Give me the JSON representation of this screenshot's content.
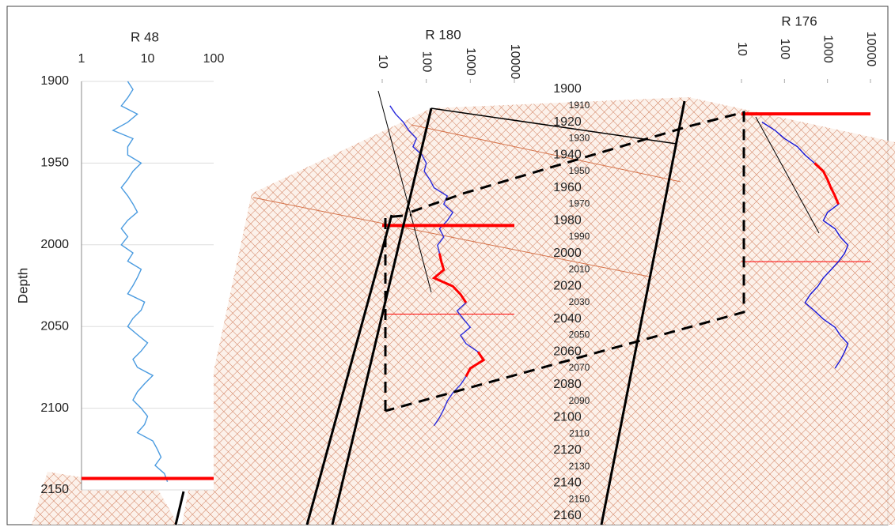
{
  "chart_data": [
    {
      "type": "line",
      "title": "R 48",
      "ylabel": "Depth",
      "xscale": "log",
      "xlim": [
        1,
        100
      ],
      "xticks": [
        1,
        10,
        100
      ],
      "ylim": [
        1900,
        2150
      ],
      "yticks": [
        1900,
        1950,
        2000,
        2050,
        2100,
        2150
      ],
      "grid": true,
      "x": [
        1900,
        1905,
        1910,
        1915,
        1920,
        1925,
        1930,
        1935,
        1940,
        1945,
        1950,
        1955,
        1960,
        1965,
        1970,
        1975,
        1980,
        1985,
        1990,
        1995,
        2000,
        2005,
        2010,
        2015,
        2020,
        2025,
        2030,
        2035,
        2040,
        2045,
        2050,
        2055,
        2060,
        2065,
        2070,
        2075,
        2080,
        2085,
        2090,
        2095,
        2100,
        2105,
        2110,
        2115,
        2120,
        2125,
        2130,
        2135,
        2140,
        2145
      ],
      "series": [
        {
          "color": "#4a9be0",
          "values": [
            5,
            6,
            5,
            4,
            7,
            5,
            3,
            6,
            5,
            5,
            8,
            6,
            5,
            4,
            5,
            6,
            7,
            5,
            4,
            5,
            4,
            6,
            5,
            8,
            7,
            6,
            5,
            9,
            8,
            6,
            5,
            7,
            10,
            8,
            6,
            7,
            12,
            9,
            7,
            6,
            8,
            10,
            9,
            7,
            12,
            14,
            16,
            13,
            18,
            20
          ]
        }
      ],
      "highlight_depths": [
        2143
      ],
      "highlight_color": "#ff0000"
    },
    {
      "type": "line",
      "title": "R 180",
      "xscale": "log",
      "xlim": [
        10,
        10000
      ],
      "xticks": [
        10,
        100,
        1000,
        10000
      ],
      "x": [
        1910,
        1915,
        1920,
        1925,
        1930,
        1935,
        1940,
        1945,
        1950,
        1955,
        1960,
        1965,
        1970,
        1975,
        1980,
        1985,
        1990,
        1995,
        2000,
        2005,
        2010,
        2015,
        2020,
        2025,
        2030,
        2035,
        2040,
        2045,
        2050,
        2055,
        2060,
        2065,
        2070,
        2075,
        2080,
        2085,
        2090,
        2095,
        2100,
        2105
      ],
      "series": [
        {
          "color": "#2a2adc",
          "values": [
            15,
            20,
            30,
            40,
            60,
            50,
            80,
            100,
            90,
            120,
            150,
            300,
            250,
            400,
            300,
            200,
            250,
            180,
            200,
            220,
            250,
            150,
            400,
            600,
            800,
            500,
            700,
            1000,
            600,
            800,
            1500,
            2000,
            1000,
            800,
            600,
            400,
            300,
            250,
            200,
            150
          ]
        },
        {
          "color": "#ff0000",
          "values": [
            null,
            null,
            null,
            null,
            null,
            null,
            null,
            null,
            null,
            null,
            null,
            null,
            null,
            null,
            null,
            null,
            null,
            null,
            200,
            220,
            250,
            150,
            400,
            600,
            800,
            null,
            null,
            null,
            null,
            null,
            1500,
            2000,
            1000,
            800,
            null,
            null,
            null,
            null,
            null,
            null
          ]
        }
      ],
      "highlight_depths": [
        1983
      ],
      "boundary_depths": [
        2037
      ],
      "highlight_color": "#ff0000"
    },
    {
      "type": "line",
      "title": "R 176",
      "xscale": "log",
      "xlim": [
        10,
        10000
      ],
      "xticks": [
        10,
        100,
        1000,
        10000
      ],
      "x": [
        1920,
        1925,
        1930,
        1935,
        1940,
        1945,
        1950,
        1955,
        1960,
        1965,
        1970,
        1975,
        1980,
        1985,
        1990,
        1995,
        2000,
        2005,
        2010,
        2015,
        2020,
        2025,
        2030,
        2035,
        2040,
        2045,
        2050,
        2055,
        2060,
        2065,
        2070
      ],
      "series": [
        {
          "color": "#1515d8",
          "values": [
            30,
            60,
            100,
            200,
            300,
            500,
            800,
            1000,
            1200,
            1500,
            1800,
            1000,
            800,
            1500,
            2000,
            3000,
            2500,
            1800,
            1200,
            800,
            600,
            400,
            300,
            500,
            800,
            1500,
            2000,
            3000,
            2500,
            2000,
            1500
          ]
        },
        {
          "color": "#ff0000",
          "values": [
            null,
            null,
            null,
            null,
            null,
            500,
            800,
            1000,
            1200,
            1500,
            1800,
            null,
            null,
            null,
            null,
            null,
            null,
            null,
            null,
            null,
            null,
            null,
            null,
            null,
            null,
            null,
            null,
            null,
            null,
            null,
            null
          ]
        }
      ],
      "highlight_depths": [
        1915
      ],
      "boundary_depths": [
        2005
      ],
      "highlight_color": "#ff0000"
    },
    {
      "type": "scale",
      "ticks": [
        1900,
        1910,
        1920,
        1930,
        1940,
        1950,
        1960,
        1970,
        1980,
        1990,
        2000,
        2010,
        2020,
        2030,
        2040,
        2050,
        2060,
        2070,
        2080,
        2090,
        2100,
        2110,
        2120,
        2130,
        2140,
        2150,
        2160
      ]
    }
  ]
}
